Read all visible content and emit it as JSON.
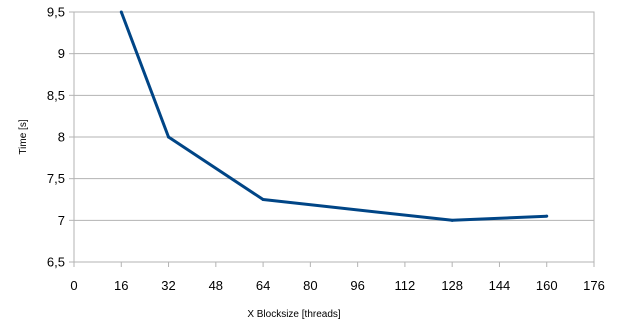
{
  "chart_data": {
    "type": "line",
    "title": "",
    "xlabel": "X Blocksize [threads]",
    "ylabel": "Time [s]",
    "xlim": [
      0,
      176
    ],
    "ylim": [
      6.5,
      9.5
    ],
    "xticks": [
      "0",
      "16",
      "32",
      "48",
      "64",
      "80",
      "96",
      "112",
      "128",
      "144",
      "160",
      "176"
    ],
    "yticks": [
      "6,5",
      "7",
      "7,5",
      "8",
      "8,5",
      "9",
      "9,5"
    ],
    "grid": true,
    "legend": "none",
    "series": [
      {
        "color": "#004586",
        "x": [
          16,
          32,
          64,
          128,
          160
        ],
        "y": [
          9.5,
          8.0,
          7.25,
          7.0,
          7.05
        ]
      }
    ]
  }
}
